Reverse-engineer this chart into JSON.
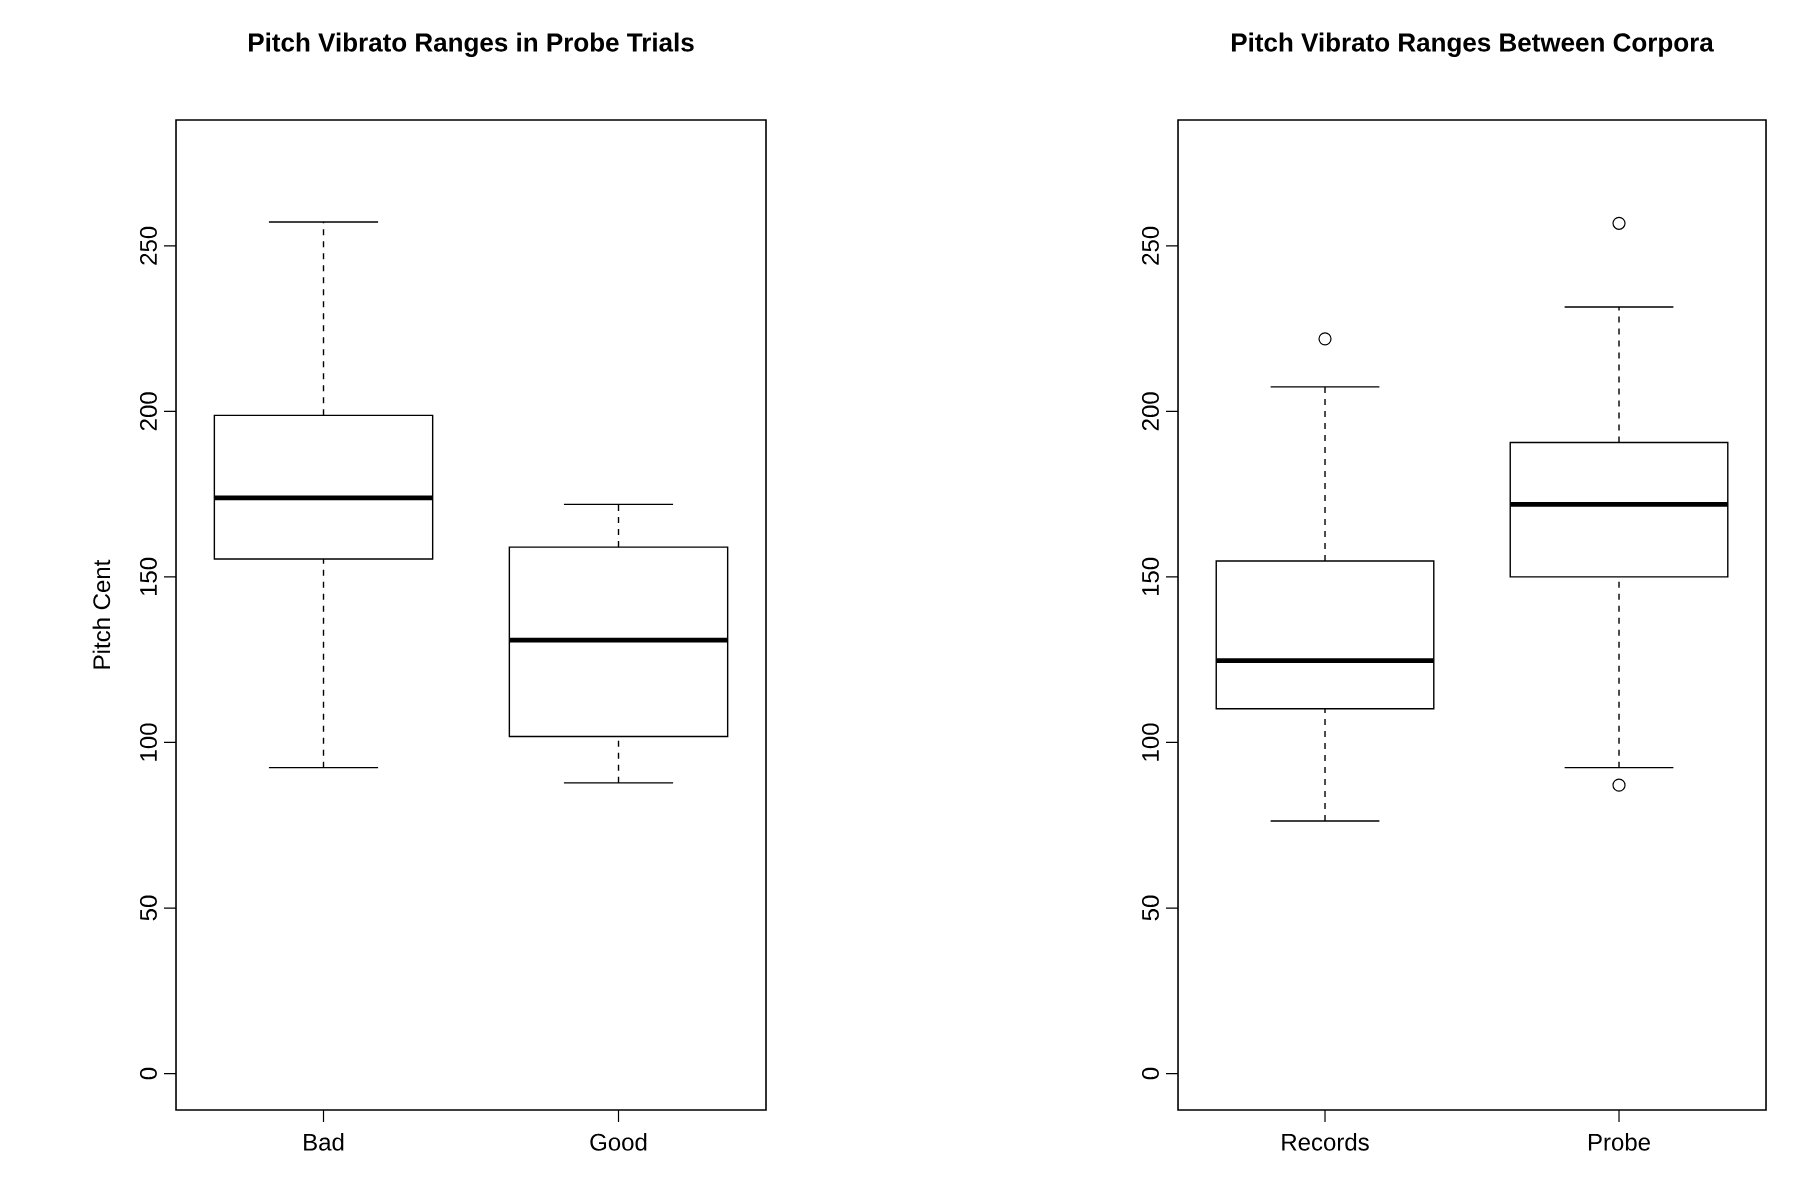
{
  "chart_data": [
    {
      "type": "box",
      "title": "Pitch Vibrato Ranges in Probe Trials",
      "ylabel": "Pitch Cent",
      "categories": [
        "Bad",
        "Good"
      ],
      "boxes": [
        {
          "low": 92.4,
          "q1": 155.4,
          "median": 173.9,
          "q3": 198.8,
          "high": 257.2
        },
        {
          "low": 87.8,
          "q1": 101.8,
          "median": 130.9,
          "q3": 159,
          "high": 171.9
        }
      ],
      "ylim": [
        -11,
        288
      ],
      "yticks": [
        0,
        50,
        100,
        150,
        200,
        250
      ]
    },
    {
      "type": "box",
      "title": "Pitch Vibrato Ranges Between Corpora",
      "categories": [
        "Records",
        "Probe"
      ],
      "boxes": [
        {
          "low": 76.3,
          "q1": 110.2,
          "median": 124.7,
          "q3": 154.8,
          "high": 207.4,
          "outliers": [
            221.9
          ]
        },
        {
          "low": 92.4,
          "q1": 150,
          "median": 171.9,
          "q3": 190.6,
          "high": 231.5,
          "outliers": [
            256.8,
            87.1
          ]
        }
      ],
      "ylim": [
        -11,
        288
      ],
      "yticks": [
        0,
        50,
        100,
        150,
        200,
        250
      ]
    }
  ]
}
